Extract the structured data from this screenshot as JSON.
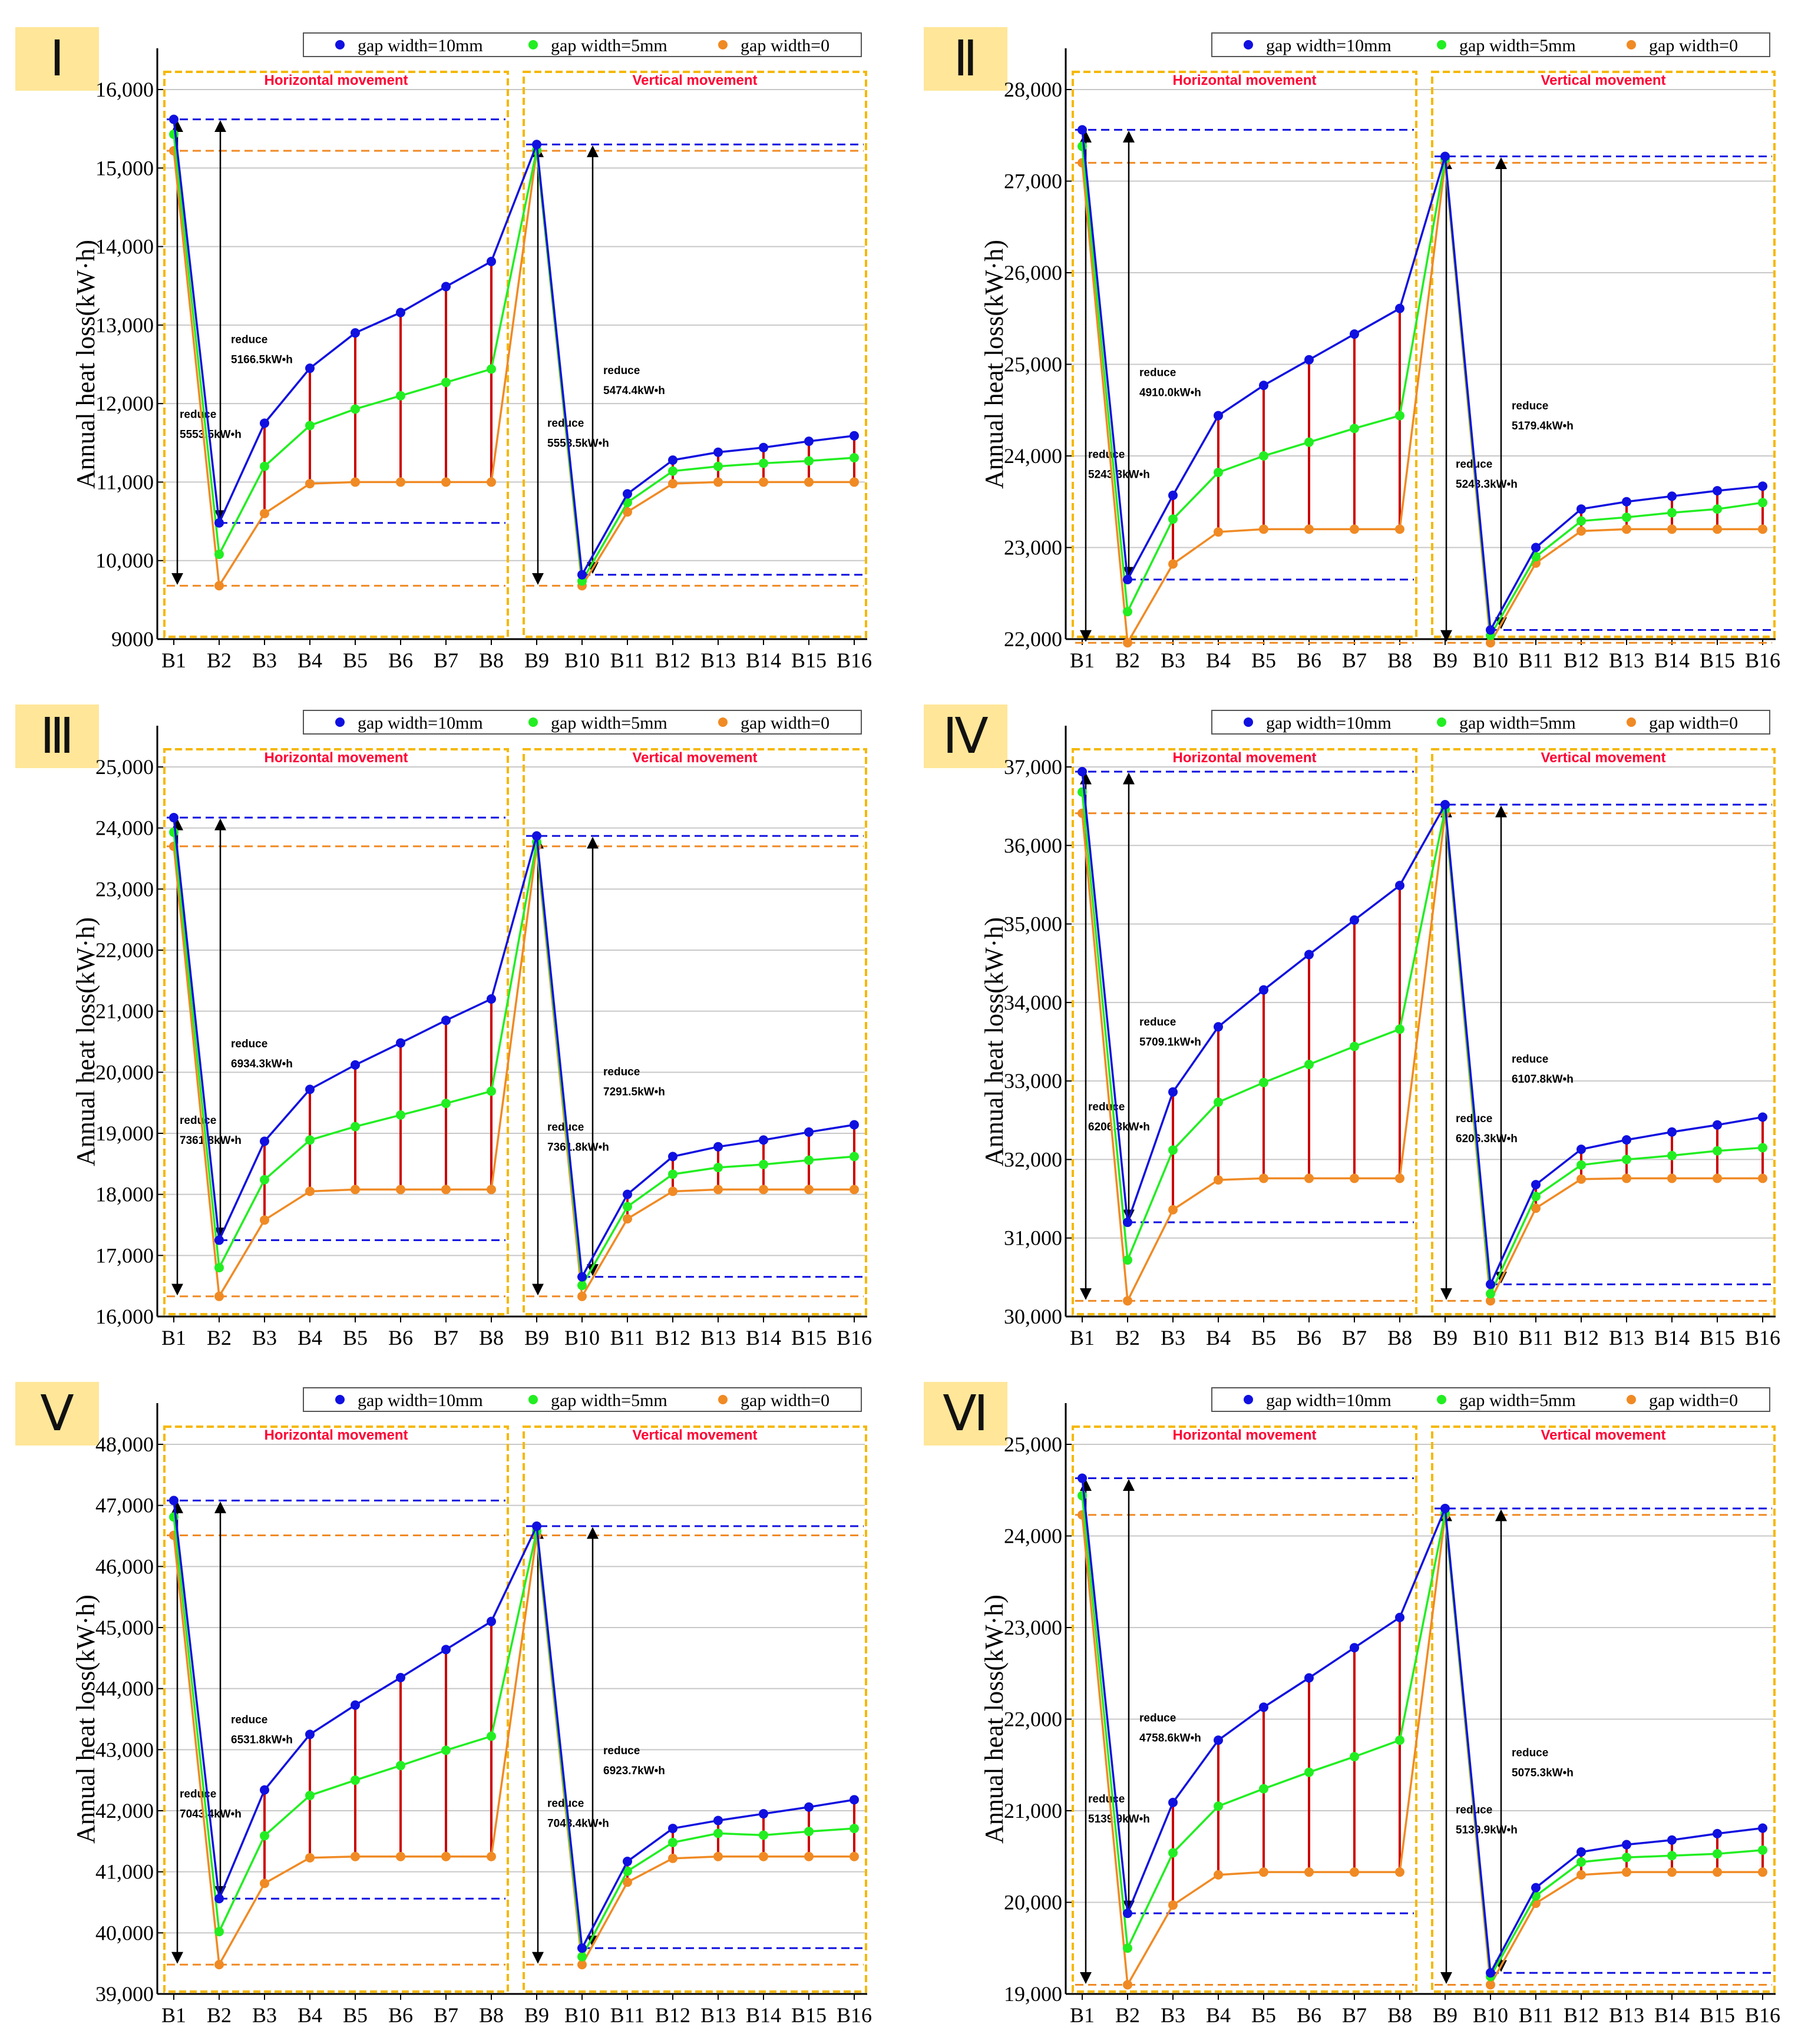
{
  "legend": [
    "gap width=10mm",
    "gap width=5mm",
    "gap width=0"
  ],
  "colors": {
    "blue": "#1010e0",
    "green": "#22ee22",
    "orange": "#f08a24",
    "stem": "#cc0000",
    "box": "#f5b800",
    "badge": "#ffe699"
  },
  "y_axis_label": "Annual heat loss(kW·h)",
  "section_labels": {
    "horizontal": "Horizontal movement",
    "vertical": "Vertical movement"
  },
  "reduce_word": "reduce",
  "chart_data": [
    {
      "type": "line",
      "panel": "Ⅰ",
      "categories": [
        "B1",
        "B2",
        "B3",
        "B4",
        "B5",
        "B6",
        "B7",
        "B8",
        "B9",
        "B10",
        "B11",
        "B12",
        "B13",
        "B14",
        "B15",
        "B16"
      ],
      "ylim": [
        9000,
        16000
      ],
      "yticks": [
        "9000",
        "10,000",
        "11,000",
        "12,000",
        "13,000",
        "14,000",
        "15,000",
        "16,000"
      ],
      "series": [
        {
          "name": "gap width=10mm",
          "values": [
            15620,
            10480,
            11750,
            12450,
            12900,
            13160,
            13490,
            13810,
            15300,
            9820,
            10850,
            11280,
            11380,
            11440,
            11520,
            11590
          ]
        },
        {
          "name": "gap width=5mm",
          "values": [
            15430,
            10080,
            11200,
            11720,
            11930,
            12100,
            12270,
            12440,
            15230,
            9740,
            10740,
            11140,
            11200,
            11240,
            11270,
            11310
          ]
        },
        {
          "name": "gap width=0",
          "values": [
            15220,
            9680,
            10600,
            10980,
            11000,
            11000,
            11000,
            11000,
            15220,
            9680,
            10620,
            10980,
            11000,
            11000,
            11000,
            11000
          ]
        }
      ],
      "ref_lines": {
        "h_top": 15620,
        "h_mid": 10480,
        "h_bot": 9680,
        "h_ref": 15220,
        "v_top": 15300,
        "v_mid": 9820,
        "v_bot": 9680,
        "v_ref": 15220
      },
      "annotations": {
        "h_big": "5553.5kW•h",
        "h_small": "5166.5kW•h",
        "v_big": "5553.5kW•h",
        "v_small": "5474.4kW•h"
      }
    },
    {
      "type": "line",
      "panel": "Ⅱ",
      "categories": [
        "B1",
        "B2",
        "B3",
        "B4",
        "B5",
        "B6",
        "B7",
        "B8",
        "B9",
        "B10",
        "B11",
        "B12",
        "B13",
        "B14",
        "B15",
        "B16"
      ],
      "ylim": [
        22000,
        28000
      ],
      "yticks": [
        "22,000",
        "23,000",
        "24,000",
        "25,000",
        "26,000",
        "27,000",
        "28,000"
      ],
      "series": [
        {
          "name": "gap width=10mm",
          "values": [
            27560,
            22650,
            23570,
            24440,
            24770,
            25050,
            25330,
            25610,
            27270,
            22100,
            23000,
            23420,
            23500,
            23560,
            23620,
            23670
          ]
        },
        {
          "name": "gap width=5mm",
          "values": [
            27380,
            22300,
            23310,
            23820,
            24000,
            24150,
            24300,
            24440,
            27240,
            22040,
            22900,
            23290,
            23330,
            23380,
            23420,
            23490
          ]
        },
        {
          "name": "gap width=0",
          "values": [
            27200,
            21960,
            22820,
            23170,
            23200,
            23200,
            23200,
            23200,
            27200,
            21960,
            22830,
            23180,
            23200,
            23200,
            23200,
            23200
          ]
        }
      ],
      "ref_lines": {
        "h_top": 27560,
        "h_mid": 22650,
        "h_bot": 21960,
        "h_ref": 27200,
        "v_top": 27270,
        "v_mid": 22100,
        "v_bot": 21960,
        "v_ref": 27200
      },
      "annotations": {
        "h_big": "5243.3kW•h",
        "h_small": "4910.0kW•h",
        "v_big": "5243.3kW•h",
        "v_small": "5179.4kW•h"
      }
    },
    {
      "type": "line",
      "panel": "Ⅲ",
      "categories": [
        "B1",
        "B2",
        "B3",
        "B4",
        "B5",
        "B6",
        "B7",
        "B8",
        "B9",
        "B10",
        "B11",
        "B12",
        "B13",
        "B14",
        "B15",
        "B16"
      ],
      "ylim": [
        16000,
        25000
      ],
      "yticks": [
        "16,000",
        "17,000",
        "18,000",
        "19,000",
        "20,000",
        "21,000",
        "22,000",
        "23,000",
        "24,000",
        "25,000"
      ],
      "series": [
        {
          "name": "gap width=10mm",
          "values": [
            24170,
            17250,
            18870,
            19720,
            20120,
            20480,
            20850,
            21200,
            23870,
            16650,
            18000,
            18620,
            18780,
            18890,
            19020,
            19140
          ]
        },
        {
          "name": "gap width=5mm",
          "values": [
            23930,
            16800,
            18240,
            18890,
            19110,
            19300,
            19490,
            19690,
            23770,
            16510,
            17800,
            18330,
            18440,
            18490,
            18560,
            18620
          ]
        },
        {
          "name": "gap width=0",
          "values": [
            23700,
            16330,
            17580,
            18050,
            18080,
            18080,
            18080,
            18080,
            23700,
            16330,
            17600,
            18050,
            18080,
            18080,
            18080,
            18080
          ]
        }
      ],
      "ref_lines": {
        "h_top": 24170,
        "h_mid": 17250,
        "h_bot": 16330,
        "h_ref": 23700,
        "v_top": 23870,
        "v_mid": 16650,
        "v_bot": 16330,
        "v_ref": 23700
      },
      "annotations": {
        "h_big": "7361.8kW•h",
        "h_small": "6934.3kW•h",
        "v_big": "7361.8kW•h",
        "v_small": "7291.5kW•h"
      }
    },
    {
      "type": "line",
      "panel": "Ⅳ",
      "categories": [
        "B1",
        "B2",
        "B3",
        "B4",
        "B5",
        "B6",
        "B7",
        "B8",
        "B9",
        "B10",
        "B11",
        "B12",
        "B13",
        "B14",
        "B15",
        "B16"
      ],
      "ylim": [
        30000,
        37000
      ],
      "yticks": [
        "30,000",
        "31,000",
        "32,000",
        "33,000",
        "34,000",
        "35,000",
        "36,000",
        "37,000"
      ],
      "series": [
        {
          "name": "gap width=10mm",
          "values": [
            36940,
            31200,
            32860,
            33690,
            34160,
            34610,
            35050,
            35490,
            36520,
            30410,
            31680,
            32130,
            32250,
            32350,
            32440,
            32540
          ]
        },
        {
          "name": "gap width=5mm",
          "values": [
            36680,
            30720,
            32120,
            32730,
            32980,
            33210,
            33440,
            33660,
            36460,
            30290,
            31530,
            31930,
            32000,
            32050,
            32110,
            32150
          ]
        },
        {
          "name": "gap width=0",
          "values": [
            36410,
            30200,
            31360,
            31740,
            31760,
            31760,
            31760,
            31760,
            36410,
            30200,
            31380,
            31750,
            31760,
            31760,
            31760,
            31760
          ]
        }
      ],
      "ref_lines": {
        "h_top": 36940,
        "h_mid": 31200,
        "h_bot": 30200,
        "h_ref": 36410,
        "v_top": 36520,
        "v_mid": 30410,
        "v_bot": 30200,
        "v_ref": 36410
      },
      "annotations": {
        "h_big": "6206.3kW•h",
        "h_small": "5709.1kW•h",
        "v_big": "6206.3kW•h",
        "v_small": "6107.8kW•h"
      }
    },
    {
      "type": "line",
      "panel": "Ⅴ",
      "categories": [
        "B1",
        "B2",
        "B3",
        "B4",
        "B5",
        "B6",
        "B7",
        "B8",
        "B9",
        "B10",
        "B11",
        "B12",
        "B13",
        "B14",
        "B15",
        "B16"
      ],
      "ylim": [
        39000,
        48000
      ],
      "yticks": [
        "39,000",
        "40,000",
        "41,000",
        "42,000",
        "43,000",
        "44,000",
        "45,000",
        "46,000",
        "47,000",
        "48,000"
      ],
      "series": [
        {
          "name": "gap width=10mm",
          "values": [
            47080,
            40560,
            42340,
            43250,
            43730,
            44180,
            44640,
            45100,
            46660,
            39750,
            41170,
            41710,
            41840,
            41950,
            42060,
            42180
          ]
        },
        {
          "name": "gap width=5mm",
          "values": [
            46810,
            40020,
            41590,
            42250,
            42500,
            42740,
            42990,
            43220,
            46580,
            39610,
            41010,
            41480,
            41630,
            41600,
            41660,
            41710
          ]
        },
        {
          "name": "gap width=0",
          "values": [
            46510,
            39480,
            40810,
            41230,
            41250,
            41250,
            41250,
            41250,
            46510,
            39480,
            40830,
            41220,
            41250,
            41250,
            41250,
            41250
          ]
        }
      ],
      "ref_lines": {
        "h_top": 47080,
        "h_mid": 40560,
        "h_bot": 39480,
        "h_ref": 46510,
        "v_top": 46660,
        "v_mid": 39750,
        "v_bot": 39480,
        "v_ref": 46510
      },
      "annotations": {
        "h_big": "7043.4kW•h",
        "h_small": "6531.8kW•h",
        "v_big": "7043.4kW•h",
        "v_small": "6923.7kW•h"
      }
    },
    {
      "type": "line",
      "panel": "Ⅵ",
      "categories": [
        "B1",
        "B2",
        "B3",
        "B4",
        "B5",
        "B6",
        "B7",
        "B8",
        "B9",
        "B10",
        "B11",
        "B12",
        "B13",
        "B14",
        "B15",
        "B16"
      ],
      "ylim": [
        19000,
        25000
      ],
      "yticks": [
        "19,000",
        "20,000",
        "21,000",
        "22,000",
        "23,000",
        "24,000",
        "25,000"
      ],
      "series": [
        {
          "name": "gap width=10mm",
          "values": [
            24630,
            19880,
            21090,
            21770,
            22130,
            22450,
            22780,
            23110,
            24300,
            19230,
            20160,
            20550,
            20630,
            20680,
            20750,
            20810
          ]
        },
        {
          "name": "gap width=5mm",
          "values": [
            24440,
            19500,
            20540,
            21050,
            21240,
            21420,
            21590,
            21770,
            24250,
            19190,
            20070,
            20440,
            20490,
            20510,
            20530,
            20570
          ]
        },
        {
          "name": "gap width=0",
          "values": [
            24230,
            19100,
            19970,
            20300,
            20330,
            20330,
            20330,
            20330,
            24230,
            19100,
            19990,
            20300,
            20330,
            20330,
            20330,
            20330
          ]
        }
      ],
      "ref_lines": {
        "h_top": 24630,
        "h_mid": 19880,
        "h_bot": 19100,
        "h_ref": 24230,
        "v_top": 24300,
        "v_mid": 19230,
        "v_bot": 19100,
        "v_ref": 24230
      },
      "annotations": {
        "h_big": "5139.9kW•h",
        "h_small": "4758.6kW•h",
        "v_big": "5139.9kW•h",
        "v_small": "5075.3kW•h"
      }
    }
  ]
}
